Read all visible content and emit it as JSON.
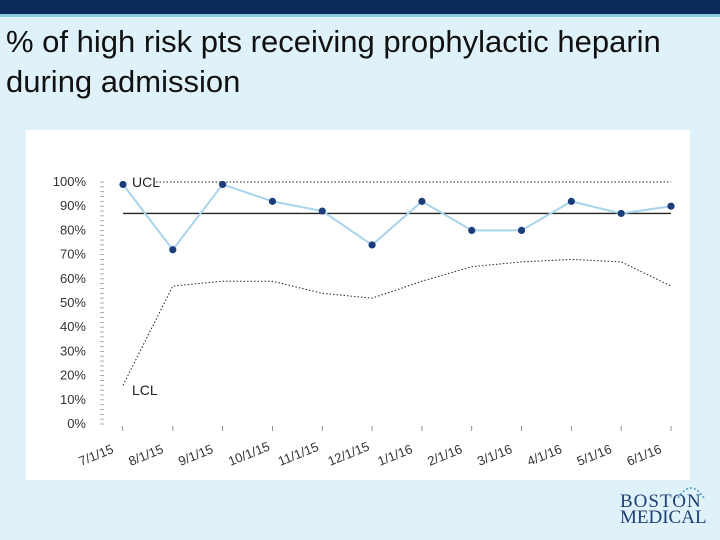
{
  "slide": {
    "title": "% of high risk pts receiving prophylactic heparin during admission"
  },
  "logo": {
    "line1": "BOSTON",
    "line2": "MEDICAL",
    "colors": {
      "text": "#1f3f73",
      "mark": "#4aa3c8"
    }
  },
  "chart_data": {
    "type": "line",
    "title": "",
    "xlabel": "",
    "ylabel": "",
    "categories": [
      "7/1/15",
      "8/1/15",
      "9/1/15",
      "10/1/15",
      "11/1/15",
      "12/1/15",
      "1/1/16",
      "2/1/16",
      "3/1/16",
      "4/1/16",
      "5/1/16",
      "6/1/16"
    ],
    "ylim": [
      0,
      100
    ],
    "yticks": [
      "0%",
      "10%",
      "20%",
      "30%",
      "40%",
      "50%",
      "60%",
      "70%",
      "80%",
      "90%",
      "100%"
    ],
    "grid": false,
    "series": [
      {
        "values": [
          99,
          72,
          99,
          92,
          88,
          74,
          92,
          80,
          80,
          92,
          87,
          90
        ],
        "color": "#a8d4ec",
        "marker_color": "#1c3d7a"
      }
    ],
    "ucl": {
      "label": "UCL",
      "value": 100
    },
    "center_line": {
      "value": 87
    },
    "lcl": {
      "label": "LCL",
      "values": [
        16,
        57,
        59,
        59,
        54,
        52,
        59,
        65,
        67,
        68,
        67,
        57
      ]
    }
  }
}
